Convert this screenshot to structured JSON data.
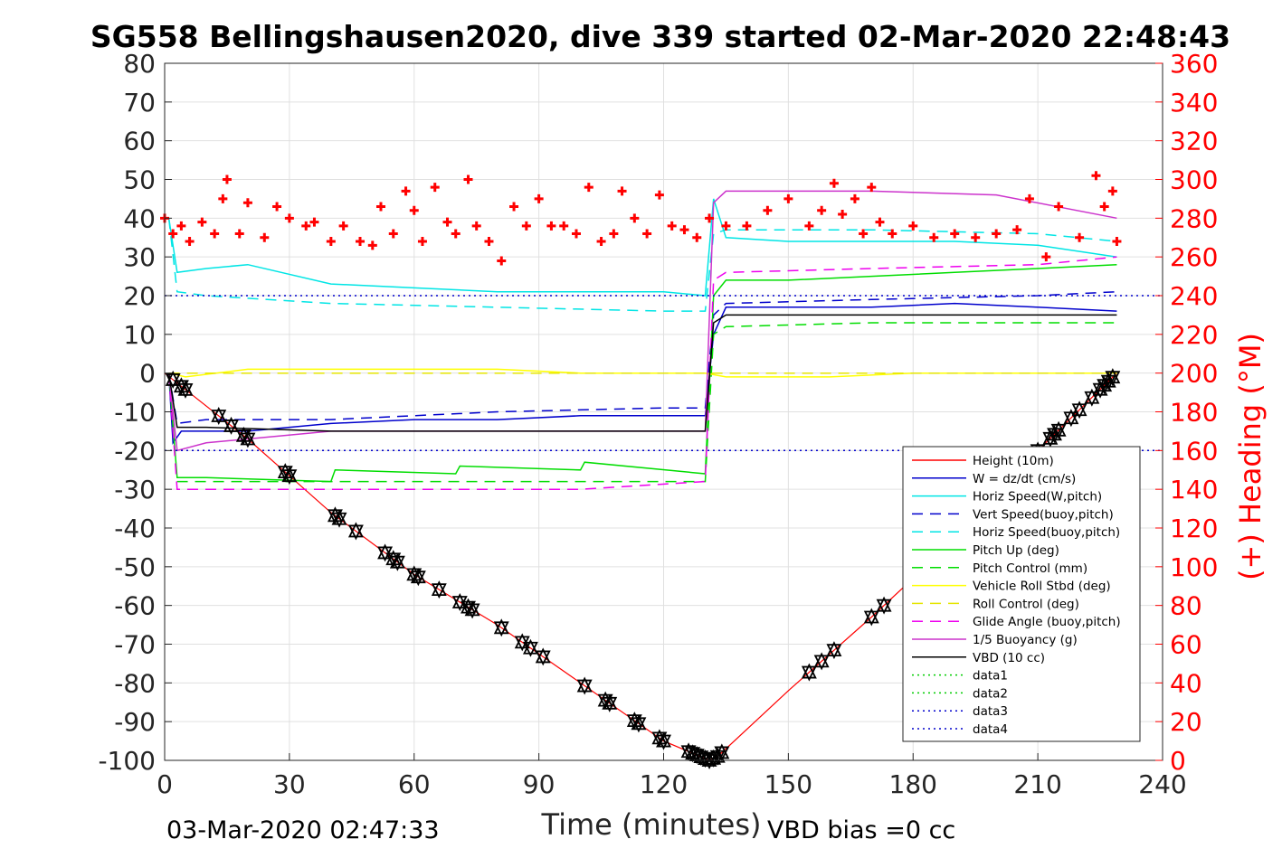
{
  "chart_data": {
    "type": "line",
    "title": "SG558 Bellingshausen2020, dive 339 started 02-Mar-2020 22:48:43",
    "xlabel": "Time (minutes)",
    "ylabel_right": "(+) Heading (°M)",
    "footer_left": "03-Mar-2020 02:47:33",
    "footer_right": "VBD bias =0 cc",
    "xlim": [
      0,
      240
    ],
    "ylim": [
      -100,
      80
    ],
    "ylim_right": [
      0,
      360
    ],
    "x_ticks": [
      0,
      30,
      60,
      90,
      120,
      150,
      180,
      210,
      240
    ],
    "y_ticks": [
      80,
      70,
      60,
      50,
      40,
      30,
      20,
      10,
      0,
      -10,
      -20,
      -30,
      -40,
      -50,
      -60,
      -70,
      -80,
      -90,
      -100
    ],
    "y_ticks_right": [
      360,
      340,
      320,
      300,
      280,
      260,
      240,
      220,
      200,
      180,
      160,
      140,
      120,
      100,
      80,
      60,
      40,
      20,
      0
    ],
    "grid": true,
    "legend_position": "lower-right",
    "colors": {
      "height": "#ff0000",
      "w": "#0000cc",
      "horiz_w": "#00e5e5",
      "vert_buoy": "#0000cc",
      "horiz_buoy": "#00e5e5",
      "pitch": "#00dd00",
      "pitch_control": "#00dd00",
      "roll": "#ffff00",
      "roll_control": "#e5e500",
      "glide": "#ee00ee",
      "buoyancy": "#cc33cc",
      "vbd": "#000000",
      "heading": "#ff0000",
      "markers": "#000000"
    },
    "series": [
      {
        "name": "Height (10m)",
        "key": "height",
        "style": "solid",
        "x": [
          0,
          20,
          40,
          60,
          80,
          100,
          120,
          131,
          133,
          150,
          170,
          190,
          210,
          229
        ],
        "y": [
          0,
          -17,
          -36,
          -52,
          -65,
          -80,
          -95,
          -100,
          -99,
          -82,
          -63,
          -43,
          -20,
          0
        ]
      },
      {
        "name": "W = dz/dt (cm/s)",
        "key": "w",
        "style": "solid",
        "x": [
          1,
          2,
          4,
          10,
          20,
          40,
          60,
          80,
          100,
          120,
          130,
          132,
          135,
          150,
          170,
          190,
          210,
          229
        ],
        "y": [
          0,
          -18,
          -15,
          -15,
          -15,
          -13,
          -12,
          -12,
          -11,
          -11,
          -11,
          10,
          17,
          17,
          17,
          18,
          17,
          16
        ]
      },
      {
        "name": "Horiz Speed(W,pitch)",
        "key": "horiz_w",
        "style": "solid",
        "x": [
          1,
          3,
          10,
          20,
          40,
          60,
          80,
          100,
          120,
          130,
          132,
          135,
          150,
          170,
          190,
          210,
          229
        ],
        "y": [
          40,
          26,
          27,
          28,
          23,
          22,
          21,
          21,
          21,
          20,
          45,
          35,
          34,
          34,
          34,
          33,
          30
        ]
      },
      {
        "name": "Vert Speed(buoy,pitch)",
        "key": "vert_buoy",
        "style": "dash",
        "x": [
          1,
          3,
          10,
          40,
          80,
          120,
          130,
          132,
          135,
          170,
          210,
          229
        ],
        "y": [
          0,
          -13,
          -12,
          -12,
          -10,
          -9,
          -9,
          15,
          18,
          19,
          20,
          21
        ]
      },
      {
        "name": "Horiz Speed(buoy,pitch)",
        "key": "horiz_buoy",
        "style": "dash",
        "x": [
          1,
          3,
          10,
          40,
          80,
          120,
          130,
          132,
          135,
          170,
          210,
          229
        ],
        "y": [
          40,
          21,
          20,
          18,
          17,
          16,
          16,
          36,
          37,
          37,
          36,
          34
        ]
      },
      {
        "name": "Pitch Up (deg)",
        "key": "pitch",
        "style": "solid",
        "x": [
          1,
          3,
          10,
          40,
          41,
          70,
          71,
          100,
          101,
          130,
          132,
          135,
          150,
          170,
          190,
          210,
          229
        ],
        "y": [
          0,
          -27,
          -27,
          -28,
          -25,
          -26,
          -24,
          -25,
          -23,
          -26,
          20,
          24,
          24,
          25,
          26,
          27,
          28
        ]
      },
      {
        "name": "Pitch Control (mm)",
        "key": "pitch_control",
        "style": "dash",
        "x": [
          1,
          3,
          20,
          60,
          100,
          130,
          132,
          135,
          170,
          210,
          229
        ],
        "y": [
          0,
          -28,
          -28,
          -28,
          -28,
          -28,
          10,
          12,
          13,
          13,
          13
        ]
      },
      {
        "name": "Vehicle Roll Stbd (deg)",
        "key": "roll",
        "style": "solid",
        "x": [
          1,
          5,
          20,
          40,
          60,
          80,
          100,
          120,
          130,
          135,
          160,
          180,
          200,
          229
        ],
        "y": [
          0,
          -1,
          1,
          1,
          1,
          1,
          0,
          0,
          0,
          -1,
          -1,
          0,
          0,
          0
        ]
      },
      {
        "name": "Roll Control (deg)",
        "key": "roll_control",
        "style": "dash",
        "x": [
          1,
          5,
          60,
          130,
          135,
          229
        ],
        "y": [
          0,
          0,
          0,
          0,
          0,
          0
        ]
      },
      {
        "name": "Glide Angle (buoy,pitch)",
        "key": "glide",
        "style": "dash",
        "x": [
          1,
          3,
          20,
          60,
          100,
          130,
          132,
          135,
          170,
          210,
          229
        ],
        "y": [
          0,
          -30,
          -30,
          -30,
          -30,
          -28,
          24,
          26,
          27,
          28,
          30
        ]
      },
      {
        "name": "1/5 Buoyancy (g)",
        "key": "buoyancy",
        "style": "solid",
        "x": [
          1,
          3,
          10,
          20,
          40,
          80,
          120,
          130,
          132,
          135,
          170,
          200,
          229
        ],
        "y": [
          0,
          -20,
          -18,
          -17,
          -15,
          -15,
          -15,
          -15,
          44,
          47,
          47,
          46,
          40
        ]
      },
      {
        "name": "VBD (10 cc)",
        "key": "vbd",
        "style": "solid",
        "x": [
          1,
          3,
          10,
          40,
          80,
          120,
          130,
          132,
          135,
          170,
          210,
          229
        ],
        "y": [
          0,
          -14,
          -14,
          -15,
          -15,
          -15,
          -15,
          13,
          15,
          15,
          15,
          15
        ]
      },
      {
        "name": "data1",
        "key": "data1",
        "style": "dot",
        "x": [],
        "y": []
      },
      {
        "name": "data2",
        "key": "data2",
        "style": "dot",
        "x": [],
        "y": []
      },
      {
        "name": "data3",
        "key": "data3",
        "style": "dot",
        "x": [
          0,
          240
        ],
        "y": [
          20,
          20
        ]
      },
      {
        "name": "data4",
        "key": "data4",
        "style": "dot",
        "x": [
          0,
          240
        ],
        "y": [
          -20,
          -20
        ]
      }
    ],
    "heading": {
      "axis": "right",
      "x": [
        0,
        2,
        4,
        6,
        9,
        12,
        14,
        15,
        18,
        20,
        24,
        27,
        30,
        34,
        36,
        40,
        43,
        47,
        50,
        52,
        55,
        58,
        60,
        62,
        65,
        68,
        70,
        73,
        75,
        78,
        81,
        84,
        87,
        90,
        93,
        96,
        99,
        102,
        105,
        108,
        110,
        113,
        116,
        119,
        122,
        125,
        128,
        131,
        135,
        140,
        145,
        150,
        155,
        158,
        161,
        163,
        166,
        168,
        170,
        172,
        175,
        180,
        185,
        190,
        195,
        200,
        205,
        208,
        212,
        215,
        220,
        224,
        226,
        228,
        229
      ],
      "y": [
        280,
        272,
        276,
        268,
        278,
        272,
        290,
        300,
        272,
        288,
        270,
        286,
        280,
        276,
        278,
        268,
        276,
        268,
        266,
        286,
        272,
        294,
        284,
        268,
        296,
        278,
        272,
        300,
        276,
        268,
        258,
        286,
        276,
        290,
        276,
        276,
        272,
        296,
        268,
        272,
        294,
        280,
        272,
        292,
        276,
        274,
        270,
        280,
        276,
        276,
        284,
        290,
        276,
        284,
        298,
        282,
        290,
        272,
        296,
        278,
        272,
        276,
        270,
        272,
        270,
        272,
        274,
        290,
        260,
        286,
        270,
        302,
        286,
        294,
        268
      ]
    },
    "markers_x": [
      2,
      4,
      5,
      13,
      16,
      19,
      20,
      29,
      30,
      41,
      42,
      46,
      53,
      55,
      56,
      60,
      61,
      66,
      71,
      73,
      74,
      81,
      86,
      88,
      91,
      101,
      106,
      107,
      113,
      114,
      119,
      120,
      126,
      127,
      128,
      129,
      130,
      131,
      132,
      133,
      134,
      155,
      158,
      161,
      170,
      173,
      210,
      213,
      214,
      215,
      218,
      220,
      223,
      225,
      226,
      227,
      228
    ]
  }
}
